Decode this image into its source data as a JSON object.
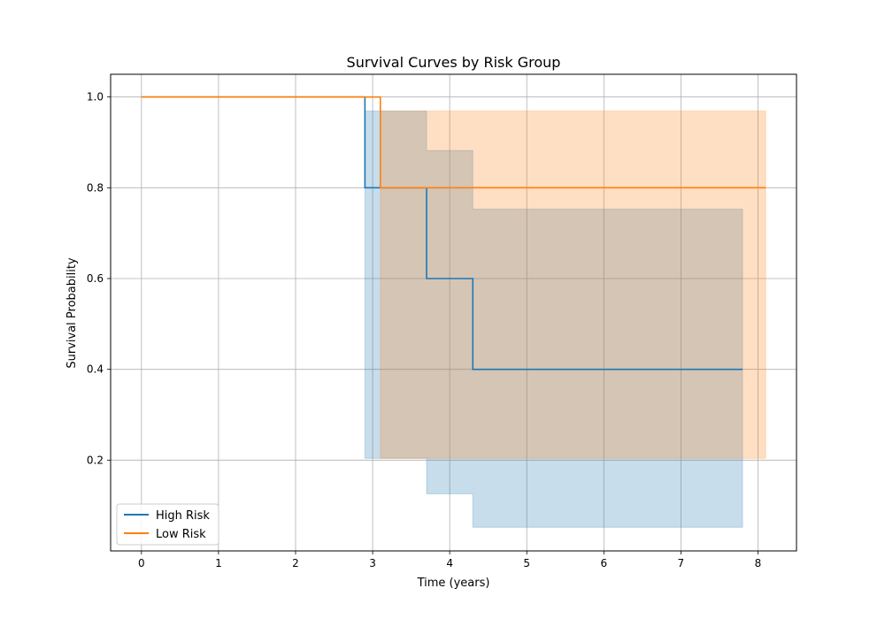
{
  "chart_data": {
    "type": "line",
    "title": "Survival Curves by Risk Group",
    "xlabel": "Time (years)",
    "ylabel": "Survival Probability",
    "xlim": [
      -0.4,
      8.5
    ],
    "ylim": [
      0.0,
      1.05
    ],
    "xticks": [
      0,
      1,
      2,
      3,
      4,
      5,
      6,
      7,
      8
    ],
    "yticks": [
      0.2,
      0.4,
      0.6,
      0.8,
      1.0
    ],
    "xtick_labels": [
      "0",
      "1",
      "2",
      "3",
      "4",
      "5",
      "6",
      "7",
      "8"
    ],
    "ytick_labels": [
      "0.2",
      "0.4",
      "0.6",
      "0.8",
      "1.0"
    ],
    "grid": true,
    "legend_position": "lower-left",
    "series": [
      {
        "name": "High Risk",
        "color": "#1f77b4",
        "step": "post",
        "x": [
          0,
          2.9,
          3.7,
          4.3,
          7.8
        ],
        "y": [
          1.0,
          0.8,
          0.6,
          0.4,
          0.4
        ],
        "ci_lower": [
          1.0,
          0.204,
          0.126,
          0.052,
          0.052
        ],
        "ci_upper": [
          1.0,
          0.969,
          0.882,
          0.753,
          0.753
        ]
      },
      {
        "name": "Low Risk",
        "color": "#ff7f0e",
        "step": "post",
        "x": [
          0,
          3.1,
          8.1
        ],
        "y": [
          1.0,
          0.8,
          0.8
        ],
        "ci_lower": [
          1.0,
          0.204,
          0.204
        ],
        "ci_upper": [
          1.0,
          0.969,
          0.969
        ]
      }
    ]
  }
}
